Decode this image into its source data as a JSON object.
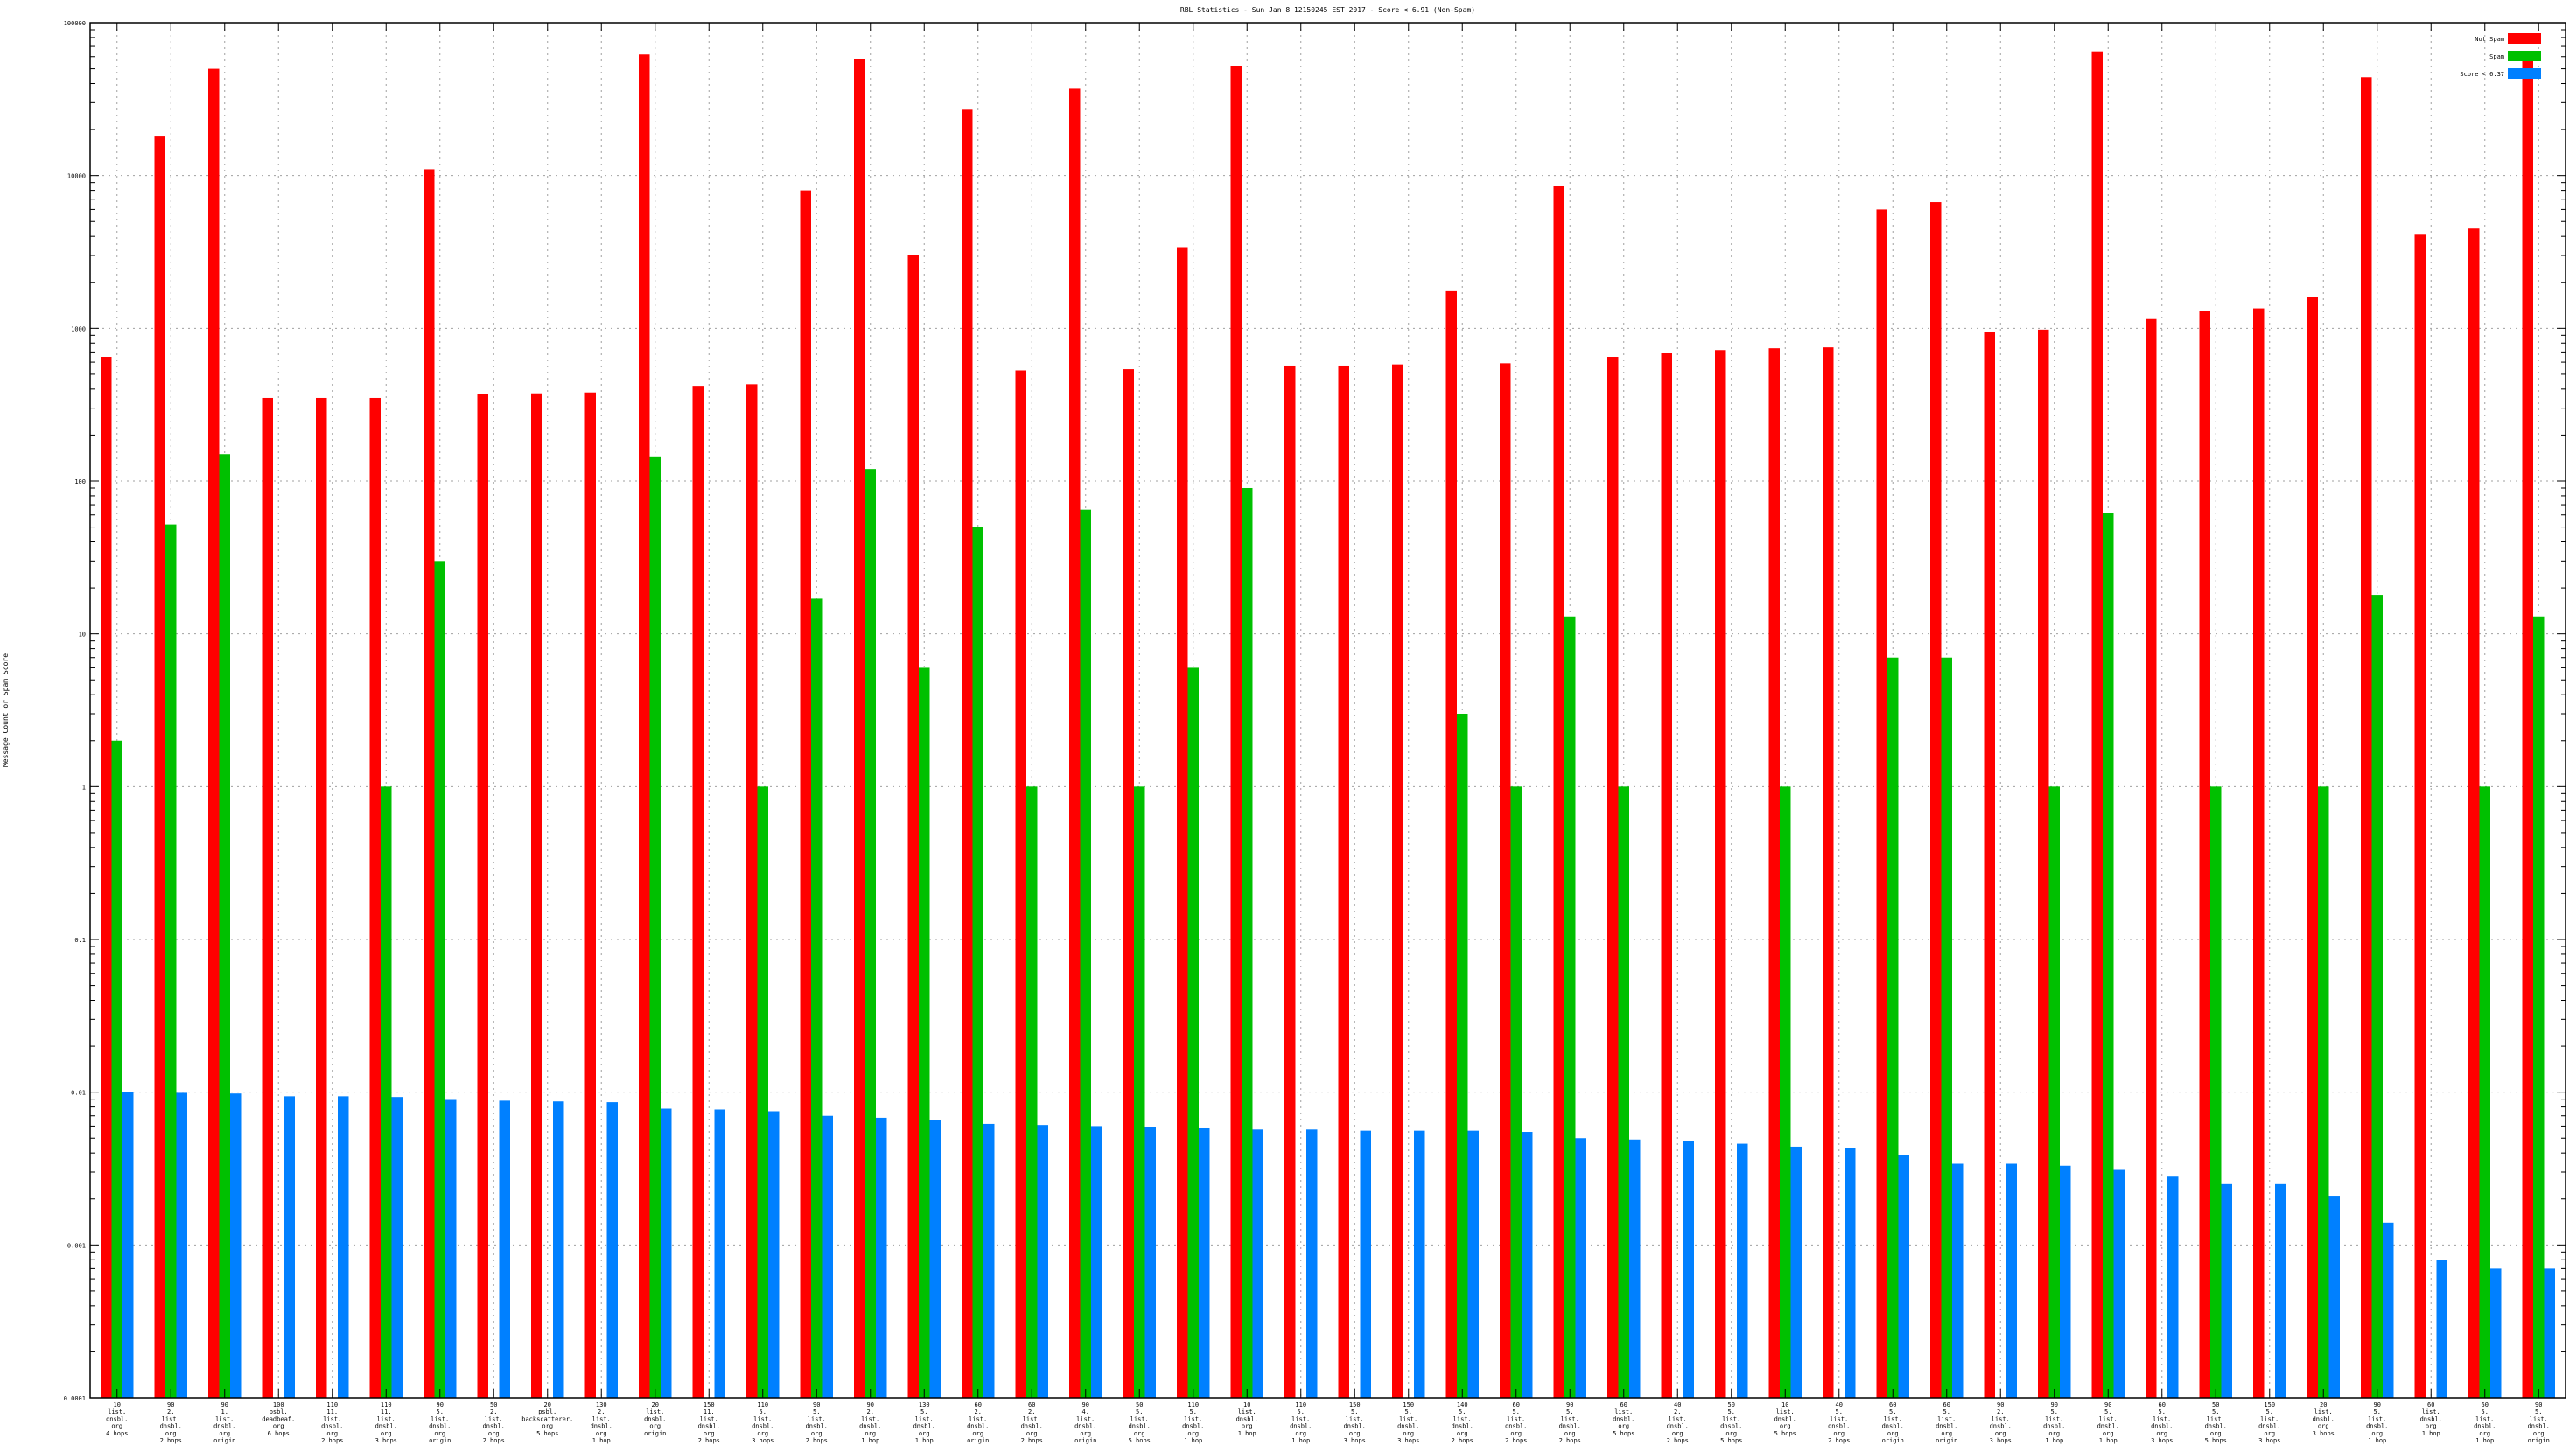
{
  "chart_data": {
    "type": "bar",
    "title": "RBL Statistics - Sun Jan  8 12150245 EST 2017 - Score < 6.91 (Non-Spam)",
    "ylabel": "Message Count or Spam Score",
    "xlabel": "",
    "y_scale": "log",
    "ylim": [
      0.0001,
      100000
    ],
    "yticks": [
      "0.0001",
      "0.001",
      "0.01",
      "0.1",
      "1",
      "10",
      "100",
      "1000",
      "10000",
      "100000"
    ],
    "grid": true,
    "legend_position": "top-right",
    "categories": [
      [
        "10",
        "list.",
        "dnsbl.",
        "org",
        "4 hops"
      ],
      [
        "90",
        "2.",
        "list.",
        "dnsbl.",
        "org",
        "2 hops"
      ],
      [
        "90",
        "1.",
        "list.",
        "dnsbl.",
        "org",
        "origin"
      ],
      [
        "100",
        "psbl.",
        "deadbeaf.",
        "org",
        "6 hops"
      ],
      [
        "110",
        "11.",
        "list.",
        "dnsbl.",
        "org",
        "2 hops"
      ],
      [
        "110",
        "11.",
        "list.",
        "dnsbl.",
        "org",
        "3 hops"
      ],
      [
        "90",
        "5.",
        "list.",
        "dnsbl.",
        "org",
        "origin"
      ],
      [
        "50",
        "2.",
        "list.",
        "dnsbl.",
        "org",
        "2 hops"
      ],
      [
        "20",
        "psbl.",
        "backscatterer.",
        "org",
        "5 hops"
      ],
      [
        "130",
        "2.",
        "list.",
        "dnsbl.",
        "org",
        "1 hop"
      ],
      [
        "20",
        "list.",
        "dnsbl.",
        "org",
        "origin"
      ],
      [
        "150",
        "11.",
        "list.",
        "dnsbl.",
        "org",
        "2 hops"
      ],
      [
        "110",
        "5.",
        "list.",
        "dnsbl.",
        "org",
        "3 hops"
      ],
      [
        "90",
        "5.",
        "list.",
        "dnsbl.",
        "org",
        "2 hops"
      ],
      [
        "90",
        "2.",
        "list.",
        "dnsbl.",
        "org",
        "1 hop"
      ],
      [
        "130",
        "5.",
        "list.",
        "dnsbl.",
        "org",
        "1 hop"
      ],
      [
        "60",
        "2.",
        "list.",
        "dnsbl.",
        "org",
        "origin"
      ],
      [
        "60",
        "2.",
        "list.",
        "dnsbl.",
        "org",
        "2 hops"
      ],
      [
        "90",
        "4.",
        "list.",
        "dnsbl.",
        "org",
        "origin"
      ],
      [
        "50",
        "5.",
        "list.",
        "dnsbl.",
        "org",
        "5 hops"
      ],
      [
        "110",
        "5.",
        "list.",
        "dnsbl.",
        "org",
        "1 hop"
      ],
      [
        "10",
        "list.",
        "dnsbl.",
        "org",
        "1 hop"
      ],
      [
        "110",
        "5.",
        "list.",
        "dnsbl.",
        "org",
        "1 hop"
      ],
      [
        "150",
        "5.",
        "list.",
        "dnsbl.",
        "org",
        "3 hops"
      ],
      [
        "150",
        "5.",
        "list.",
        "dnsbl.",
        "org",
        "3 hops"
      ],
      [
        "140",
        "5.",
        "list.",
        "dnsbl.",
        "org",
        "2 hops"
      ],
      [
        "60",
        "5.",
        "list.",
        "dnsbl.",
        "org",
        "2 hops"
      ],
      [
        "90",
        "5.",
        "list.",
        "dnsbl.",
        "org",
        "2 hops"
      ],
      [
        "60",
        "list.",
        "dnsbl.",
        "org",
        "5 hops"
      ],
      [
        "40",
        "2.",
        "list.",
        "dnsbl.",
        "org",
        "2 hops"
      ],
      [
        "50",
        "5.",
        "list.",
        "dnsbl.",
        "org",
        "5 hops"
      ],
      [
        "10",
        "list.",
        "dnsbl.",
        "org",
        "5 hops"
      ],
      [
        "40",
        "5.",
        "list.",
        "dnsbl.",
        "org",
        "2 hops"
      ],
      [
        "60",
        "5.",
        "list.",
        "dnsbl.",
        "org",
        "origin"
      ],
      [
        "60",
        "5.",
        "list.",
        "dnsbl.",
        "org",
        "origin"
      ],
      [
        "90",
        "2.",
        "list.",
        "dnsbl.",
        "org",
        "3 hops"
      ],
      [
        "90",
        "5.",
        "list.",
        "dnsbl.",
        "org",
        "1 hop"
      ],
      [
        "90",
        "5.",
        "list.",
        "dnsbl.",
        "org",
        "1 hop"
      ],
      [
        "60",
        "5.",
        "list.",
        "dnsbl.",
        "org",
        "3 hops"
      ],
      [
        "50",
        "5.",
        "list.",
        "dnsbl.",
        "org",
        "5 hops"
      ],
      [
        "150",
        "5.",
        "list.",
        "dnsbl.",
        "org",
        "3 hops"
      ],
      [
        "20",
        "list.",
        "dnsbl.",
        "org",
        "3 hops"
      ],
      [
        "90",
        "5.",
        "list.",
        "dnsbl.",
        "org",
        "1 hop"
      ],
      [
        "60",
        "list.",
        "dnsbl.",
        "org",
        "1 hop"
      ],
      [
        "60",
        "5.",
        "list.",
        "dnsbl.",
        "org",
        "1 hop"
      ],
      [
        "90",
        "5.",
        "list.",
        "dnsbl.",
        "org",
        "origin"
      ]
    ],
    "series": [
      {
        "name": "Not Spam",
        "color": "#ff0000",
        "values": [
          650,
          18000,
          50000,
          350,
          350,
          350,
          11000,
          370,
          375,
          380,
          62000,
          420,
          430,
          8000,
          58000,
          3000,
          27000,
          530,
          37000,
          540,
          3400,
          52000,
          570,
          570,
          580,
          1750,
          590,
          8500,
          650,
          690,
          720,
          740,
          750,
          6000,
          6700,
          950,
          980,
          65000,
          1150,
          1300,
          1350,
          1600,
          44000,
          4100,
          4500,
          62000
        ]
      },
      {
        "name": "Spam",
        "color": "#00c000",
        "values": [
          2,
          52,
          150,
          null,
          null,
          1,
          30,
          null,
          null,
          null,
          145,
          null,
          1,
          17,
          120,
          6,
          50,
          1,
          65,
          1,
          6,
          90,
          null,
          null,
          null,
          3,
          1,
          13,
          1,
          null,
          null,
          1,
          null,
          7,
          7,
          null,
          1,
          62,
          null,
          1,
          null,
          1,
          18,
          null,
          1,
          13
        ]
      },
      {
        "name": "Score < 6.37",
        "color": "#0080ff",
        "values": [
          0.01,
          0.0099,
          0.0098,
          0.0094,
          0.0094,
          0.0093,
          0.0089,
          0.0088,
          0.0087,
          0.0086,
          0.0078,
          0.0077,
          0.0075,
          0.007,
          0.0068,
          0.0066,
          0.0062,
          0.0061,
          0.006,
          0.0059,
          0.0058,
          0.0057,
          0.0057,
          0.0056,
          0.0056,
          0.0056,
          0.0055,
          0.005,
          0.0049,
          0.0048,
          0.0046,
          0.0044,
          0.0043,
          0.0039,
          0.0034,
          0.0034,
          0.0033,
          0.0031,
          0.0028,
          0.0025,
          0.0025,
          0.0021,
          0.0014,
          0.0008,
          0.0007,
          0.0007
        ]
      }
    ]
  }
}
